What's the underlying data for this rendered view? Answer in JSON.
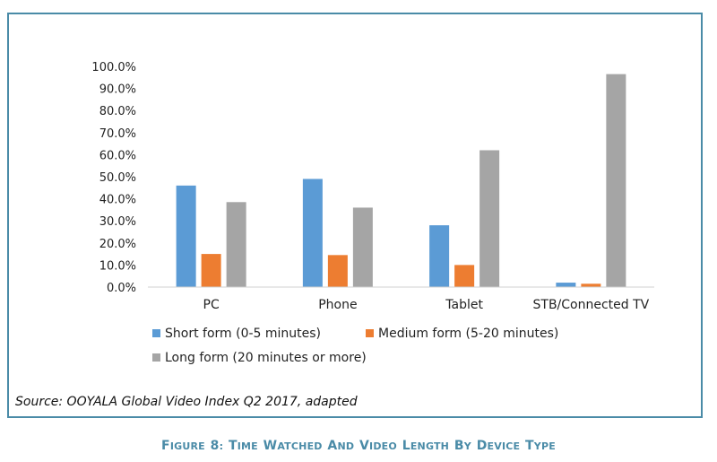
{
  "chart_data": {
    "type": "bar",
    "categories": [
      "PC",
      "Phone",
      "Tablet",
      "STB/Connected TV"
    ],
    "series": [
      {
        "name": "Short form (0-5 minutes)",
        "color": "#5b9bd5",
        "values": [
          46.0,
          49.0,
          28.0,
          2.0
        ]
      },
      {
        "name": "Medium form (5-20 minutes)",
        "color": "#ed7d31",
        "values": [
          15.0,
          14.5,
          10.0,
          1.5
        ]
      },
      {
        "name": "Long form (20 minutes or more)",
        "color": "#a5a5a5",
        "values": [
          38.5,
          36.0,
          62.0,
          96.5
        ]
      }
    ],
    "y_ticks": [
      "0.0%",
      "10.0%",
      "20.0%",
      "30.0%",
      "40.0%",
      "50.0%",
      "60.0%",
      "70.0%",
      "80.0%",
      "90.0%",
      "100.0%"
    ],
    "ylim": [
      0,
      100
    ],
    "legend_position": "bottom",
    "title": "",
    "xlabel": "",
    "ylabel": ""
  },
  "source_note": "Source: OOYALA Global Video Index Q2 2017, adapted",
  "caption": {
    "figure_label": "Figure 8:",
    "figure_text": "Time watched and video length by device type"
  }
}
